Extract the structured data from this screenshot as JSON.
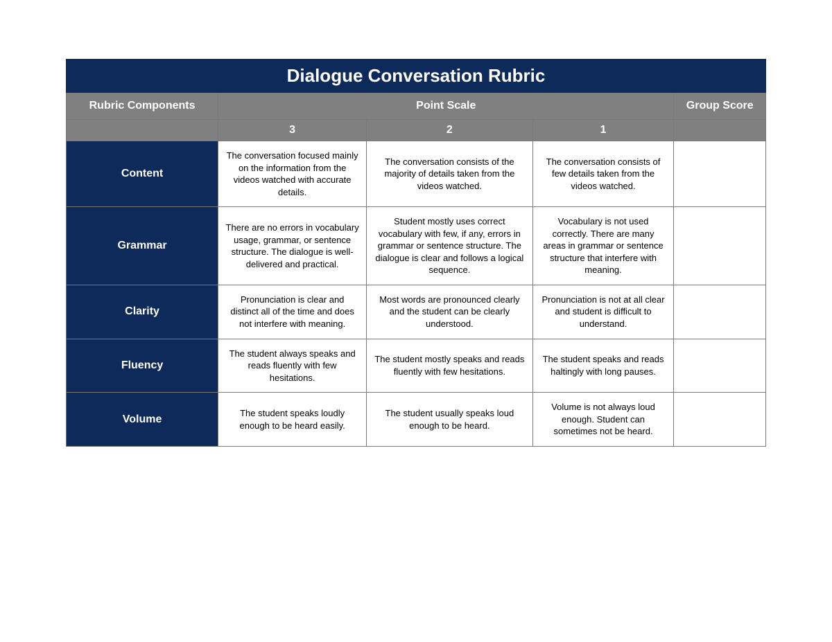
{
  "rubric": {
    "title": "Dialogue Conversation Rubric",
    "headers": {
      "components": "Rubric Components",
      "point_scale": "Point Scale",
      "group_score": "Group Score"
    },
    "scale_labels": [
      "3",
      "2",
      "1"
    ],
    "colors": {
      "title_bg": "#0d2a5a",
      "header_bg": "#808080",
      "component_bg": "#0d2a5a",
      "cell_bg": "#ffffff",
      "border": "#7a7a7a",
      "title_text": "#ffffff",
      "header_text": "#ffffff",
      "body_text": "#000000"
    },
    "fonts": {
      "title_size": 26,
      "header_size": 16,
      "body_size": 13,
      "family": "Verdana, Geneva, sans-serif"
    },
    "column_widths": {
      "component": 215,
      "scale_3": 210,
      "scale_2": 235,
      "scale_1": 200,
      "score": 130
    },
    "rows": [
      {
        "component": "Content",
        "scale3": "The conversation focused mainly on the information from the videos watched with accurate details.",
        "scale2": "The conversation consists of the majority of details taken from the videos watched.",
        "scale1": "The conversation consists of few details taken from the videos watched.",
        "score": ""
      },
      {
        "component": "Grammar",
        "scale3": "There are no errors in vocabulary usage, grammar, or sentence structure. The dialogue is well-delivered and practical.",
        "scale2": "Student mostly uses correct vocabulary with few, if any, errors in grammar or sentence structure. The dialogue is clear and follows a logical sequence.",
        "scale1": "Vocabulary is not used correctly. There are many areas in grammar or sentence structure that interfere with meaning.",
        "score": ""
      },
      {
        "component": "Clarity",
        "scale3": "Pronunciation is clear and distinct all of the time and does not interfere with meaning.",
        "scale2": "Most words are pronounced clearly and the student can be clearly understood.",
        "scale1": "Pronunciation is not at all clear and student is difficult to understand.",
        "score": ""
      },
      {
        "component": "Fluency",
        "scale3": "The student always speaks and reads fluently with few hesitations.",
        "scale2": "The student mostly speaks and reads fluently with few hesitations.",
        "scale1": "The student speaks and reads haltingly with long pauses.",
        "score": ""
      },
      {
        "component": "Volume",
        "scale3": "The student speaks loudly enough to be heard easily.",
        "scale2": "The student usually speaks loud enough to be heard.",
        "scale1": "Volume is not always loud enough. Student can sometimes not be heard.",
        "score": ""
      }
    ]
  }
}
